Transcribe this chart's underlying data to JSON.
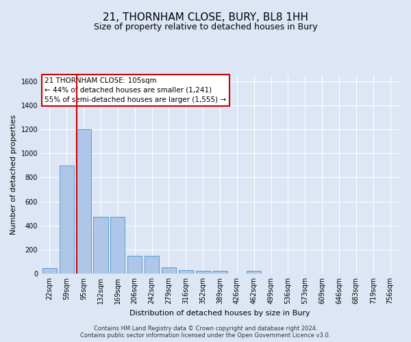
{
  "title": "21, THORNHAM CLOSE, BURY, BL8 1HH",
  "subtitle": "Size of property relative to detached houses in Bury",
  "xlabel": "Distribution of detached houses by size in Bury",
  "ylabel": "Number of detached properties",
  "footer_line1": "Contains HM Land Registry data © Crown copyright and database right 2024.",
  "footer_line2": "Contains public sector information licensed under the Open Government Licence v3.0.",
  "categories": [
    "22sqm",
    "59sqm",
    "95sqm",
    "132sqm",
    "169sqm",
    "206sqm",
    "242sqm",
    "279sqm",
    "316sqm",
    "352sqm",
    "389sqm",
    "426sqm",
    "462sqm",
    "499sqm",
    "536sqm",
    "573sqm",
    "609sqm",
    "646sqm",
    "683sqm",
    "719sqm",
    "756sqm"
  ],
  "values": [
    45,
    900,
    1200,
    470,
    470,
    150,
    150,
    50,
    30,
    20,
    20,
    0,
    20,
    0,
    0,
    0,
    0,
    0,
    0,
    0,
    0
  ],
  "bar_color": "#aec6e8",
  "bar_edge_color": "#5b9bd5",
  "vline_index": 2,
  "vline_color": "#cc0000",
  "annotation_text": "21 THORNHAM CLOSE: 105sqm\n← 44% of detached houses are smaller (1,241)\n55% of semi-detached houses are larger (1,555) →",
  "annotation_box_facecolor": "#ffffff",
  "annotation_box_edgecolor": "#cc0000",
  "ylim": [
    0,
    1650
  ],
  "yticks": [
    0,
    200,
    400,
    600,
    800,
    1000,
    1200,
    1400,
    1600
  ],
  "bg_color": "#dce6f5",
  "grid_color": "#ffffff",
  "title_fontsize": 11,
  "subtitle_fontsize": 9,
  "tick_fontsize": 7,
  "ylabel_fontsize": 8,
  "xlabel_fontsize": 8,
  "footer_fontsize": 6,
  "annot_fontsize": 7.5
}
